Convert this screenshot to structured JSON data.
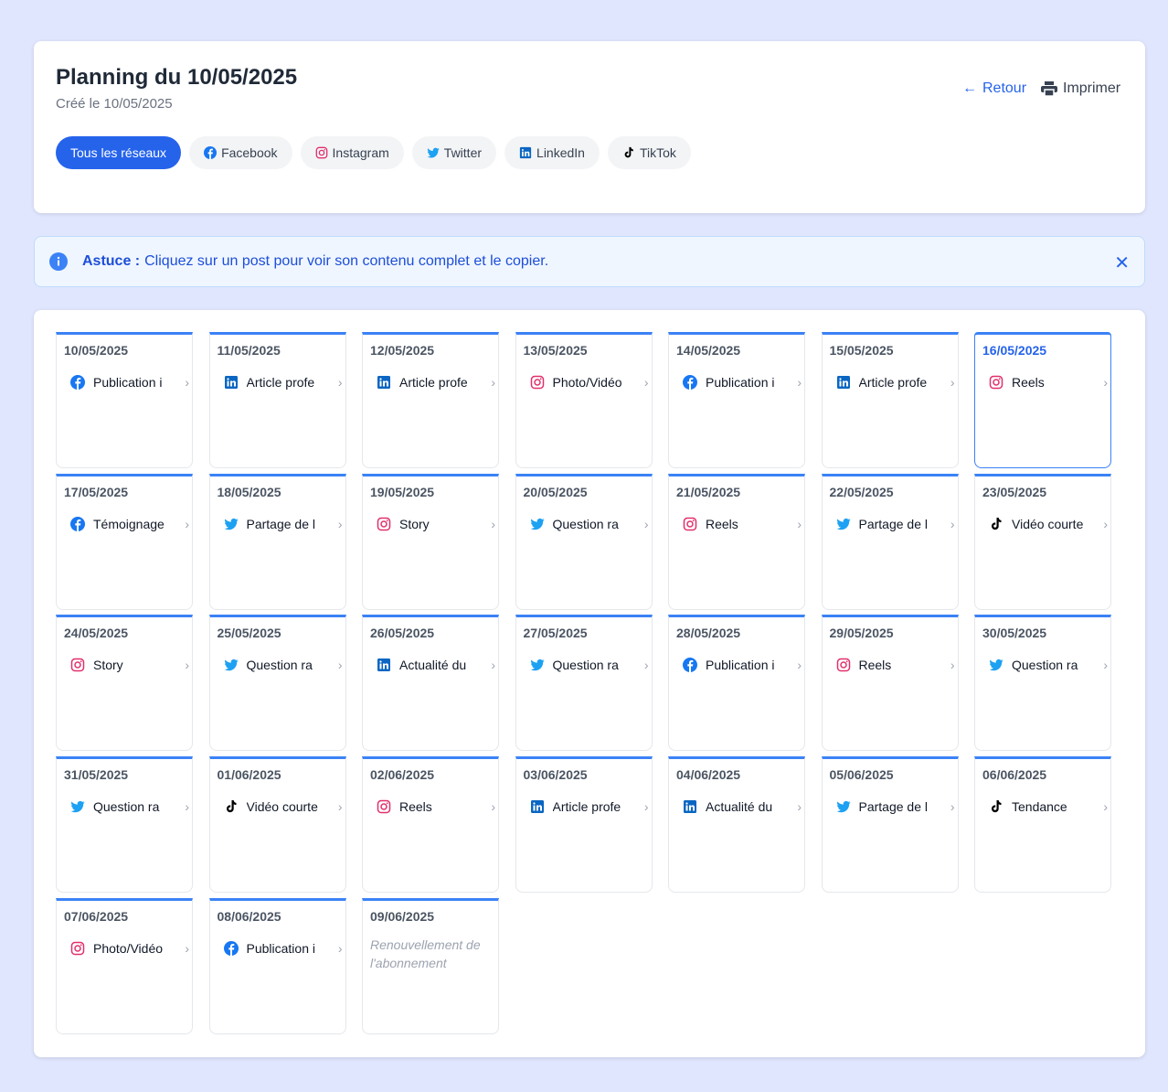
{
  "header": {
    "title": "Planning du 10/05/2025",
    "subtitle": "Créé le 10/05/2025",
    "back_label": "Retour",
    "print_label": "Imprimer"
  },
  "filters": [
    {
      "label": "Tous les réseaux",
      "icon": "",
      "active": true
    },
    {
      "label": "Facebook",
      "icon": "facebook"
    },
    {
      "label": "Instagram",
      "icon": "instagram"
    },
    {
      "label": "Twitter",
      "icon": "twitter"
    },
    {
      "label": "LinkedIn",
      "icon": "linkedin"
    },
    {
      "label": "TikTok",
      "icon": "tiktok"
    }
  ],
  "tip": {
    "bold": "Astuce :",
    "text": "Cliquez sur un post pour voir son contenu complet et le copier."
  },
  "colors": {
    "facebook": "#1877f2",
    "instagram": "#e1306c",
    "twitter": "#1da1f2",
    "linkedin": "#0a66c2",
    "tiktok": "#000000",
    "accent": "#2563eb"
  },
  "days": [
    {
      "date": "10/05/2025",
      "network": "facebook",
      "label": "Publication i"
    },
    {
      "date": "11/05/2025",
      "network": "linkedin",
      "label": "Article profe"
    },
    {
      "date": "12/05/2025",
      "network": "linkedin",
      "label": "Article profe"
    },
    {
      "date": "13/05/2025",
      "network": "instagram",
      "label": "Photo/Vidéo"
    },
    {
      "date": "14/05/2025",
      "network": "facebook",
      "label": "Publication i"
    },
    {
      "date": "15/05/2025",
      "network": "linkedin",
      "label": "Article profe"
    },
    {
      "date": "16/05/2025",
      "network": "instagram",
      "label": "Reels",
      "selected": true
    },
    {
      "date": "17/05/2025",
      "network": "facebook",
      "label": "Témoignage"
    },
    {
      "date": "18/05/2025",
      "network": "twitter",
      "label": "Partage de l"
    },
    {
      "date": "19/05/2025",
      "network": "instagram",
      "label": "Story"
    },
    {
      "date": "20/05/2025",
      "network": "twitter",
      "label": "Question ra"
    },
    {
      "date": "21/05/2025",
      "network": "instagram",
      "label": "Reels"
    },
    {
      "date": "22/05/2025",
      "network": "twitter",
      "label": "Partage de l"
    },
    {
      "date": "23/05/2025",
      "network": "tiktok",
      "label": "Vidéo courte"
    },
    {
      "date": "24/05/2025",
      "network": "instagram",
      "label": "Story"
    },
    {
      "date": "25/05/2025",
      "network": "twitter",
      "label": "Question ra"
    },
    {
      "date": "26/05/2025",
      "network": "linkedin",
      "label": "Actualité du"
    },
    {
      "date": "27/05/2025",
      "network": "twitter",
      "label": "Question ra"
    },
    {
      "date": "28/05/2025",
      "network": "facebook",
      "label": "Publication i"
    },
    {
      "date": "29/05/2025",
      "network": "instagram",
      "label": "Reels"
    },
    {
      "date": "30/05/2025",
      "network": "twitter",
      "label": "Question ra"
    },
    {
      "date": "31/05/2025",
      "network": "twitter",
      "label": "Question ra"
    },
    {
      "date": "01/06/2025",
      "network": "tiktok",
      "label": "Vidéo courte"
    },
    {
      "date": "02/06/2025",
      "network": "instagram",
      "label": "Reels"
    },
    {
      "date": "03/06/2025",
      "network": "linkedin",
      "label": "Article profe"
    },
    {
      "date": "04/06/2025",
      "network": "linkedin",
      "label": "Actualité du"
    },
    {
      "date": "05/06/2025",
      "network": "twitter",
      "label": "Partage de l"
    },
    {
      "date": "06/06/2025",
      "network": "tiktok",
      "label": "Tendance"
    },
    {
      "date": "07/06/2025",
      "network": "instagram",
      "label": "Photo/Vidéo"
    },
    {
      "date": "08/06/2025",
      "network": "facebook",
      "label": "Publication i"
    },
    {
      "date": "09/06/2025",
      "note": "Renouvellement de l'abonnement"
    }
  ]
}
